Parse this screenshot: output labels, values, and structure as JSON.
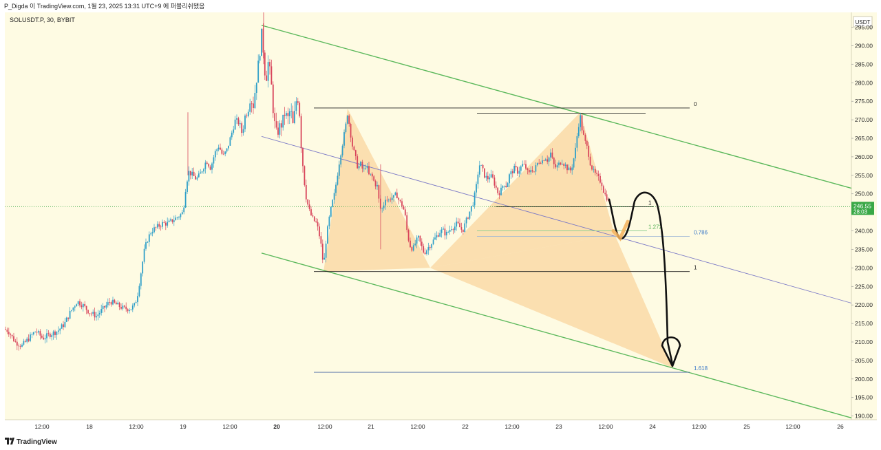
{
  "header": {
    "caption": "P_Digda 이 TradingView.com, 1월 23, 2025 13:31 UTC+9 에 퍼블리쉬됐음"
  },
  "footer": {
    "brand": "TradingView"
  },
  "chart_data": {
    "type": "candlestick",
    "symbol_label": "SOLUSDT.P, 30, BYBIT",
    "currency": "USDT",
    "price_tag": "246.55",
    "countdown_tag": "28:03",
    "current_price": 246.55,
    "ylim": [
      189,
      299
    ],
    "y_ticks": [
      "190.00",
      "195.00",
      "200.00",
      "205.00",
      "210.00",
      "215.00",
      "220.00",
      "225.00",
      "230.00",
      "235.00",
      "240.00",
      "245.00",
      "250.00",
      "255.00",
      "260.00",
      "265.00",
      "270.00",
      "275.00",
      "280.00",
      "285.00",
      "290.00",
      "295.00"
    ],
    "x_ticks": [
      "12:00",
      "18",
      "12:00",
      "19",
      "12:00",
      "20",
      "12:00",
      "21",
      "12:00",
      "22",
      "12:00",
      "23",
      "12:00",
      "24",
      "12:00",
      "25",
      "12:00",
      "26"
    ],
    "price_path": [
      [
        0,
        214
      ],
      [
        12,
        213
      ],
      [
        22,
        210
      ],
      [
        32,
        209
      ],
      [
        42,
        211
      ],
      [
        52,
        213
      ],
      [
        62,
        211
      ],
      [
        72,
        212
      ],
      [
        84,
        213
      ],
      [
        94,
        215
      ],
      [
        102,
        218
      ],
      [
        112,
        221
      ],
      [
        120,
        220
      ],
      [
        130,
        218
      ],
      [
        140,
        217
      ],
      [
        150,
        219
      ],
      [
        160,
        221
      ],
      [
        170,
        220
      ],
      [
        180,
        219
      ],
      [
        190,
        219
      ],
      [
        196,
        220
      ],
      [
        200,
        223
      ],
      [
        205,
        229
      ],
      [
        210,
        235
      ],
      [
        215,
        238
      ],
      [
        220,
        240
      ],
      [
        228,
        241
      ],
      [
        236,
        242
      ],
      [
        244,
        242
      ],
      [
        252,
        243
      ],
      [
        260,
        244
      ],
      [
        266,
        245
      ],
      [
        270,
        252
      ],
      [
        274,
        256
      ],
      [
        280,
        255
      ],
      [
        285,
        254
      ],
      [
        290,
        255
      ],
      [
        295,
        257
      ],
      [
        300,
        259
      ],
      [
        306,
        257
      ],
      [
        312,
        261
      ],
      [
        318,
        263
      ],
      [
        324,
        260
      ],
      [
        330,
        262
      ],
      [
        336,
        266
      ],
      [
        342,
        270
      ],
      [
        348,
        269
      ],
      [
        352,
        266
      ],
      [
        356,
        271
      ],
      [
        360,
        272
      ],
      [
        364,
        276
      ],
      [
        368,
        274
      ],
      [
        372,
        280
      ],
      [
        376,
        286
      ],
      [
        380,
        293
      ],
      [
        383,
        288
      ],
      [
        386,
        280
      ],
      [
        390,
        286
      ],
      [
        394,
        280
      ],
      [
        398,
        270
      ],
      [
        402,
        266
      ],
      [
        406,
        268
      ],
      [
        410,
        269
      ],
      [
        414,
        272
      ],
      [
        418,
        270
      ],
      [
        422,
        273
      ],
      [
        426,
        268
      ],
      [
        430,
        275
      ],
      [
        434,
        276
      ],
      [
        438,
        262
      ],
      [
        442,
        254
      ],
      [
        446,
        248
      ],
      [
        450,
        245
      ],
      [
        455,
        243
      ],
      [
        460,
        242
      ],
      [
        465,
        238
      ],
      [
        468,
        234
      ],
      [
        470,
        230
      ],
      [
        474,
        238
      ],
      [
        478,
        243
      ],
      [
        482,
        247
      ],
      [
        486,
        250
      ],
      [
        490,
        255
      ],
      [
        494,
        260
      ],
      [
        498,
        264
      ],
      [
        502,
        268
      ],
      [
        505,
        272
      ],
      [
        508,
        268
      ],
      [
        512,
        263
      ],
      [
        516,
        260
      ],
      [
        520,
        257
      ],
      [
        524,
        258
      ],
      [
        528,
        256
      ],
      [
        532,
        258
      ],
      [
        536,
        255
      ],
      [
        540,
        255
      ],
      [
        544,
        253
      ],
      [
        548,
        252
      ],
      [
        552,
        246
      ],
      [
        556,
        246
      ],
      [
        560,
        249
      ],
      [
        564,
        248
      ],
      [
        568,
        249
      ],
      [
        572,
        249
      ],
      [
        576,
        250
      ],
      [
        580,
        248
      ],
      [
        584,
        247
      ],
      [
        588,
        245
      ],
      [
        592,
        239
      ],
      [
        596,
        236
      ],
      [
        600,
        235
      ],
      [
        604,
        237
      ],
      [
        608,
        238
      ],
      [
        612,
        236
      ],
      [
        616,
        234
      ],
      [
        620,
        235
      ],
      [
        624,
        236
      ],
      [
        628,
        237
      ],
      [
        632,
        238
      ],
      [
        636,
        239
      ],
      [
        640,
        240
      ],
      [
        644,
        240
      ],
      [
        648,
        239
      ],
      [
        652,
        240
      ],
      [
        656,
        241
      ],
      [
        660,
        241
      ],
      [
        664,
        242
      ],
      [
        668,
        241
      ],
      [
        672,
        240
      ],
      [
        676,
        242
      ],
      [
        680,
        244
      ],
      [
        684,
        246
      ],
      [
        688,
        248
      ],
      [
        692,
        252
      ],
      [
        696,
        258
      ],
      [
        700,
        257
      ],
      [
        704,
        255
      ],
      [
        708,
        254
      ],
      [
        712,
        255
      ],
      [
        716,
        254
      ],
      [
        720,
        252
      ],
      [
        724,
        250
      ],
      [
        728,
        251
      ],
      [
        732,
        253
      ],
      [
        736,
        252
      ],
      [
        740,
        255
      ],
      [
        744,
        256
      ],
      [
        748,
        257
      ],
      [
        752,
        256
      ],
      [
        756,
        257
      ],
      [
        760,
        258
      ],
      [
        764,
        257
      ],
      [
        768,
        255
      ],
      [
        772,
        257
      ],
      [
        776,
        256
      ],
      [
        780,
        258
      ],
      [
        784,
        259
      ],
      [
        788,
        259
      ],
      [
        792,
        260
      ],
      [
        796,
        259
      ],
      [
        800,
        261
      ],
      [
        804,
        258
      ],
      [
        808,
        257
      ],
      [
        812,
        258
      ],
      [
        816,
        259
      ],
      [
        820,
        258
      ],
      [
        824,
        257
      ],
      [
        828,
        256
      ],
      [
        832,
        258
      ],
      [
        836,
        262
      ],
      [
        840,
        268
      ],
      [
        843,
        271
      ],
      [
        846,
        267
      ],
      [
        850,
        264
      ],
      [
        854,
        262
      ],
      [
        858,
        258
      ],
      [
        862,
        256
      ],
      [
        866,
        255
      ],
      [
        870,
        254
      ],
      [
        874,
        253
      ],
      [
        878,
        250
      ],
      [
        882,
        249
      ],
      [
        885,
        247
      ]
    ],
    "channel_upper": [
      [
        380,
        295.5
      ],
      [
        1237,
        251.5
      ]
    ],
    "channel_lower": [
      [
        380,
        234
      ],
      [
        1237,
        189.5
      ]
    ],
    "mid_line": [
      [
        380,
        265.5
      ],
      [
        1237,
        220.5
      ]
    ],
    "pattern_triangles": [
      [
        [
          470,
          229
        ],
        [
          505,
          273
        ],
        [
          625,
          230
        ]
      ],
      [
        [
          625,
          230
        ],
        [
          843,
          272
        ],
        [
          893,
          239
        ]
      ],
      [
        [
          625,
          230
        ],
        [
          893,
          239
        ],
        [
          978,
          203
        ]
      ]
    ],
    "fib_lines": [
      {
        "x0": 456,
        "x1": 1002,
        "price": 273.2,
        "color": "#202020",
        "label": "0",
        "lx": 1008
      },
      {
        "x0": 693,
        "x1": 938,
        "price": 271.8,
        "color": "#202020",
        "label": "",
        "lx": 0
      },
      {
        "x0": 456,
        "x1": 1002,
        "price": 229.0,
        "color": "#202020",
        "label": "1",
        "lx": 1008
      },
      {
        "x0": 720,
        "x1": 950,
        "price": 246.5,
        "color": "#202020",
        "label": "1",
        "lx": 942
      },
      {
        "x0": 693,
        "x1": 940,
        "price": 240.0,
        "color": "#8fcf8f",
        "label": "1.272",
        "lx": 942
      },
      {
        "x0": 693,
        "x1": 1002,
        "price": 238.5,
        "color": "#9db6d6",
        "label": "0.786",
        "lx": 1008
      },
      {
        "x0": 456,
        "x1": 1002,
        "price": 201.8,
        "color": "#4a6aa6",
        "label": "1.618",
        "lx": 1008
      }
    ],
    "fib_label_colors": {
      "0": "#202020",
      "1": "#202020",
      "1.272": "#55b055",
      "0.786": "#3a78c8",
      "1.618": "#3a78c8"
    }
  }
}
